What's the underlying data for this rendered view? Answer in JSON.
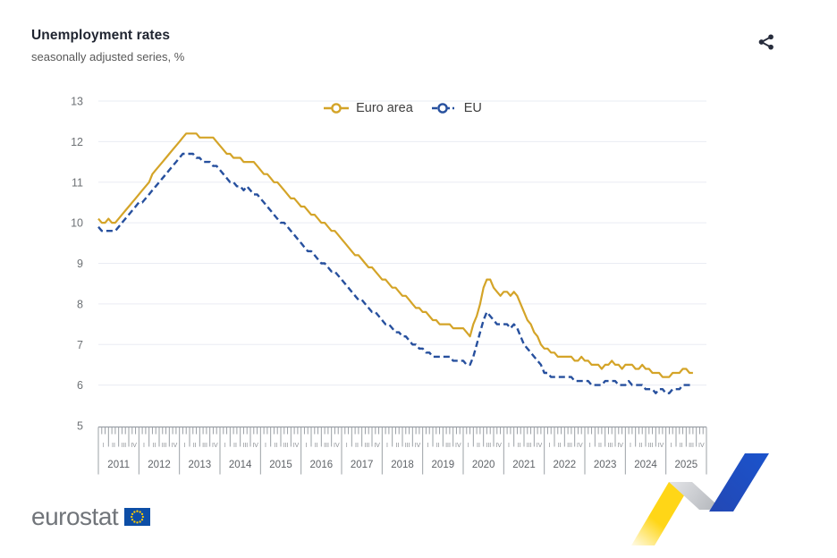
{
  "header": {
    "title": "Unemployment rates",
    "subtitle": "seasonally adjusted series, %"
  },
  "toolbar": {
    "share_icon": "share-icon"
  },
  "legend": [
    {
      "label": "Euro area",
      "color": "#D4A428",
      "style": "solid"
    },
    {
      "label": "EU",
      "color": "#27509E",
      "style": "dashed"
    }
  ],
  "footer": {
    "logo_text": "eurostat",
    "flag_icon": "eu-flag-icon"
  },
  "colors": {
    "title": "#1F2430",
    "subtitle": "#585858",
    "grid": "#EAECF3",
    "axis": "#9BA0A6",
    "axis_label": "#6E7276",
    "quarter_label": "#8A8E93",
    "year_label": "#5F6368",
    "euro_area_line": "#D4A428",
    "eu_line": "#27509E",
    "share_icon": "#272C3C",
    "flag_blue": "#0D4EA6",
    "flag_star": "#FFCC00",
    "ribbon_yellow": "#FFD617",
    "ribbon_grey": "#C3C6CA",
    "ribbon_blue": "#1B51C8"
  },
  "chart_data": {
    "type": "line",
    "title": "Unemployment rates",
    "subtitle": "seasonally adjusted series, %",
    "grid": true,
    "legend_position": "top-center",
    "x_axis": {
      "unit": "month",
      "start": "2011-01",
      "end": "2025-09",
      "years": [
        2011,
        2012,
        2013,
        2014,
        2015,
        2016,
        2017,
        2018,
        2019,
        2020,
        2021,
        2022,
        2023,
        2024,
        2025
      ],
      "quarter_labels": [
        "I",
        "II",
        "III",
        "IV"
      ]
    },
    "y_axis": {
      "min": 5,
      "max": 13,
      "ticks": [
        5,
        6,
        7,
        8,
        9,
        10,
        11,
        12,
        13
      ],
      "unit": "%"
    },
    "series": [
      {
        "name": "Euro area",
        "color": "#D4A428",
        "style": "solid",
        "values": [
          10.1,
          10.0,
          10.0,
          10.1,
          10.0,
          10.0,
          10.1,
          10.2,
          10.3,
          10.4,
          10.5,
          10.6,
          10.7,
          10.8,
          10.9,
          11.0,
          11.2,
          11.3,
          11.4,
          11.5,
          11.6,
          11.7,
          11.8,
          11.9,
          12.0,
          12.1,
          12.2,
          12.2,
          12.2,
          12.2,
          12.1,
          12.1,
          12.1,
          12.1,
          12.1,
          12.0,
          11.9,
          11.8,
          11.7,
          11.7,
          11.6,
          11.6,
          11.6,
          11.5,
          11.5,
          11.5,
          11.5,
          11.4,
          11.3,
          11.2,
          11.2,
          11.1,
          11.0,
          11.0,
          10.9,
          10.8,
          10.7,
          10.6,
          10.6,
          10.5,
          10.4,
          10.4,
          10.3,
          10.2,
          10.2,
          10.1,
          10.0,
          10.0,
          9.9,
          9.8,
          9.8,
          9.7,
          9.6,
          9.5,
          9.4,
          9.3,
          9.2,
          9.2,
          9.1,
          9.0,
          8.9,
          8.9,
          8.8,
          8.7,
          8.6,
          8.6,
          8.5,
          8.4,
          8.4,
          8.3,
          8.2,
          8.2,
          8.1,
          8.0,
          7.9,
          7.9,
          7.8,
          7.8,
          7.7,
          7.6,
          7.6,
          7.5,
          7.5,
          7.5,
          7.5,
          7.4,
          7.4,
          7.4,
          7.4,
          7.3,
          7.2,
          7.5,
          7.7,
          8.0,
          8.4,
          8.6,
          8.6,
          8.4,
          8.3,
          8.2,
          8.3,
          8.3,
          8.2,
          8.3,
          8.2,
          8.0,
          7.8,
          7.6,
          7.5,
          7.3,
          7.2,
          7.0,
          6.9,
          6.9,
          6.8,
          6.8,
          6.7,
          6.7,
          6.7,
          6.7,
          6.7,
          6.6,
          6.6,
          6.7,
          6.6,
          6.6,
          6.5,
          6.5,
          6.5,
          6.4,
          6.5,
          6.5,
          6.6,
          6.5,
          6.5,
          6.4,
          6.5,
          6.5,
          6.5,
          6.4,
          6.4,
          6.5,
          6.4,
          6.4,
          6.3,
          6.3,
          6.3,
          6.2,
          6.2,
          6.2,
          6.3,
          6.3,
          6.3,
          6.4,
          6.4,
          6.3,
          6.3
        ]
      },
      {
        "name": "EU",
        "color": "#27509E",
        "style": "dashed",
        "values": [
          9.9,
          9.8,
          9.8,
          9.8,
          9.8,
          9.8,
          9.9,
          10.0,
          10.1,
          10.2,
          10.3,
          10.4,
          10.5,
          10.5,
          10.6,
          10.7,
          10.8,
          10.9,
          11.0,
          11.1,
          11.2,
          11.3,
          11.4,
          11.5,
          11.6,
          11.7,
          11.7,
          11.7,
          11.7,
          11.6,
          11.6,
          11.5,
          11.5,
          11.5,
          11.4,
          11.4,
          11.3,
          11.2,
          11.1,
          11.0,
          11.0,
          10.9,
          10.9,
          10.8,
          10.9,
          10.8,
          10.7,
          10.7,
          10.6,
          10.5,
          10.4,
          10.3,
          10.2,
          10.1,
          10.0,
          10.0,
          9.9,
          9.8,
          9.7,
          9.6,
          9.5,
          9.4,
          9.3,
          9.3,
          9.2,
          9.1,
          9.0,
          9.0,
          8.9,
          8.8,
          8.8,
          8.7,
          8.6,
          8.5,
          8.4,
          8.3,
          8.2,
          8.1,
          8.1,
          8.0,
          7.9,
          7.8,
          7.8,
          7.7,
          7.6,
          7.5,
          7.5,
          7.4,
          7.3,
          7.3,
          7.2,
          7.2,
          7.1,
          7.0,
          7.0,
          6.9,
          6.9,
          6.8,
          6.8,
          6.7,
          6.7,
          6.7,
          6.7,
          6.7,
          6.7,
          6.6,
          6.6,
          6.6,
          6.6,
          6.5,
          6.5,
          6.7,
          7.0,
          7.3,
          7.6,
          7.8,
          7.7,
          7.6,
          7.5,
          7.5,
          7.5,
          7.5,
          7.4,
          7.5,
          7.4,
          7.2,
          7.0,
          6.9,
          6.8,
          6.7,
          6.6,
          6.5,
          6.3,
          6.3,
          6.2,
          6.2,
          6.2,
          6.2,
          6.2,
          6.2,
          6.2,
          6.1,
          6.1,
          6.1,
          6.1,
          6.1,
          6.0,
          6.0,
          6.0,
          6.0,
          6.1,
          6.1,
          6.1,
          6.1,
          6.0,
          6.0,
          6.0,
          6.1,
          6.0,
          6.0,
          6.0,
          6.0,
          5.9,
          5.9,
          5.9,
          5.8,
          5.9,
          5.9,
          5.8,
          5.8,
          5.9,
          5.9,
          5.9,
          6.0,
          6.0,
          6.0,
          6.0
        ]
      }
    ]
  }
}
